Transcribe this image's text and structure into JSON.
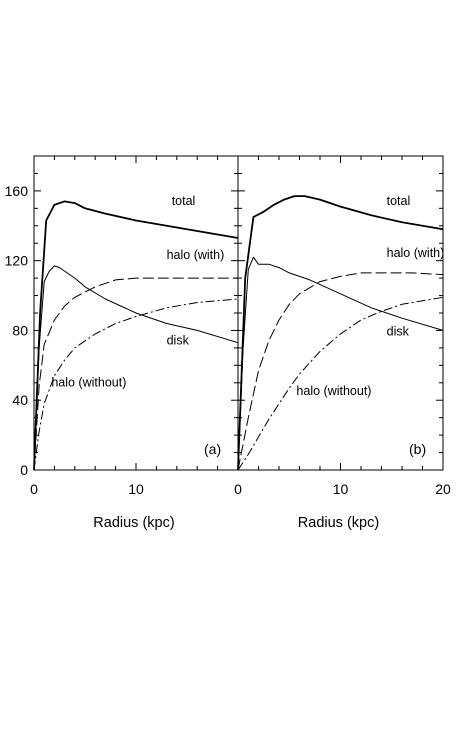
{
  "chart_data": [
    {
      "type": "line",
      "panel_label": "(a)",
      "xlabel": "Radius (kpc)",
      "ylabel": "",
      "xlim": [
        0,
        20
      ],
      "ylim": [
        0,
        180
      ],
      "x_ticks": [
        "0",
        "10",
        ""
      ],
      "y_ticks": [
        "0",
        "40",
        "80",
        "120",
        "160"
      ],
      "grid": false,
      "series": [
        {
          "name": "total",
          "style": "solid-thick",
          "label_at": [
            13.5,
            152
          ],
          "x": [
            0,
            0.6,
            1.2,
            2,
            3,
            4,
            5,
            7,
            10,
            13,
            16,
            20
          ],
          "y": [
            0,
            90,
            143,
            152,
            154,
            153,
            150,
            147,
            143,
            140,
            137,
            133
          ]
        },
        {
          "name": "halo (with)",
          "style": "dashed",
          "label_at": [
            13,
            121
          ],
          "x": [
            0,
            0.5,
            1,
            2,
            3,
            4,
            6,
            8,
            10,
            13,
            16,
            20
          ],
          "y": [
            0,
            48,
            72,
            86,
            94,
            99,
            105,
            109,
            110,
            110,
            110,
            110
          ]
        },
        {
          "name": "disk",
          "style": "solid",
          "label_at": [
            13,
            72
          ],
          "x": [
            0,
            0.5,
            1,
            1.5,
            2,
            2.5,
            3,
            4,
            5,
            7,
            10,
            13,
            16,
            20
          ],
          "y": [
            0,
            70,
            108,
            114,
            117,
            116,
            114,
            110,
            105,
            98,
            90,
            84,
            80,
            73
          ]
        },
        {
          "name": "halo (without)",
          "style": "dash-dot",
          "label_at": [
            1.7,
            48
          ],
          "x": [
            0,
            0.5,
            1,
            2,
            3,
            4,
            6,
            8,
            10,
            13,
            16,
            20
          ],
          "y": [
            0,
            22,
            38,
            54,
            63,
            70,
            78,
            84,
            88,
            93,
            96,
            98
          ]
        }
      ]
    },
    {
      "type": "line",
      "panel_label": "(b)",
      "xlabel": "Radius (kpc)",
      "ylabel": "",
      "xlim": [
        0,
        20
      ],
      "ylim": [
        0,
        180
      ],
      "x_ticks": [
        "0",
        "10",
        "20"
      ],
      "y_ticks": [],
      "grid": false,
      "series": [
        {
          "name": "total",
          "style": "solid-thick",
          "label_at": [
            14.5,
            152
          ],
          "x": [
            0,
            0.7,
            1.5,
            2.5,
            3.5,
            4.5,
            5.5,
            6.5,
            8,
            10,
            13,
            16,
            20
          ],
          "y": [
            0,
            110,
            145,
            148,
            152,
            155,
            157,
            157,
            155,
            151,
            146,
            142,
            138
          ]
        },
        {
          "name": "halo (with)",
          "style": "dashed",
          "label_at": [
            14.5,
            122
          ],
          "x": [
            0,
            1,
            2,
            3,
            4,
            5,
            6,
            8,
            10,
            12,
            14,
            17,
            20
          ],
          "y": [
            0,
            30,
            57,
            74,
            86,
            95,
            101,
            108,
            111,
            113,
            113,
            113,
            112
          ]
        },
        {
          "name": "disk",
          "style": "solid",
          "label_at": [
            14.5,
            77
          ],
          "x": [
            0,
            0.5,
            1,
            1.5,
            2,
            3,
            4,
            5,
            7,
            10,
            13,
            16,
            20
          ],
          "y": [
            0,
            70,
            115,
            122,
            118,
            118,
            116,
            113,
            109,
            101,
            93,
            87,
            80
          ]
        },
        {
          "name": "halo (without)",
          "style": "dash-dot",
          "label_at": [
            5.7,
            43
          ],
          "x": [
            0,
            1,
            2,
            3,
            4,
            5,
            6,
            8,
            10,
            12,
            14,
            16,
            18,
            20
          ],
          "y": [
            0,
            9,
            19,
            29,
            38,
            47,
            55,
            68,
            78,
            86,
            91,
            95,
            97,
            99
          ]
        }
      ]
    }
  ]
}
